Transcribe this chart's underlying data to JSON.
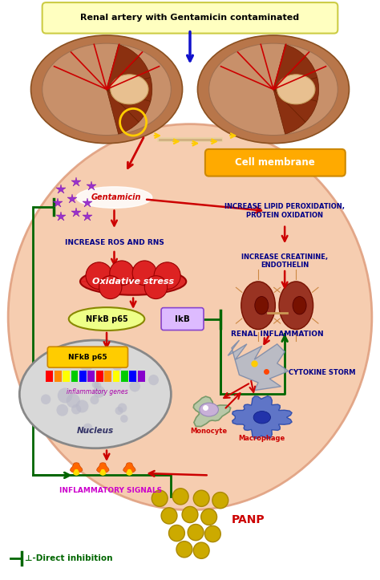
{
  "title": "Renal artery with Gentamicin contaminated",
  "title_bg": "#ffffc0",
  "cell_membrane_label": "Cell membrane",
  "cell_membrane_bg": "#ffaa00",
  "cell_fill": "#f5c8a8",
  "cell_edge": "#e0a080",
  "labels": {
    "gentamicin": "Gentamicin",
    "ros": "INCREASE ROS AND RNS",
    "lipid": "INCREASE LIPID PEROXIDATION,\nPROTEIN OXIDATION",
    "creatinine": "INCREASE CREATININE,\nENDOTHELIN",
    "oxidative": "Oxidative stress",
    "nfkb": "NFkB p65",
    "ikb": "IkB",
    "nfkb_nucleus": "NFkB p65",
    "inflammatory_genes": "inflammatory genes",
    "nucleus": "Nucleus",
    "inflammatory_signals": "INFLAMMATORY SIGNALS",
    "renal_inflammation": "RENAL INFLAMMATION",
    "cytokine_storm": "CYTOKINE STORM",
    "monocyte": "Monocyte",
    "macrophage": "Macrophage",
    "panp": "PANP",
    "direct_inhibition": "⊥-Direct inhibition"
  },
  "colors": {
    "red_arrow": "#cc0000",
    "blue_arrow": "#1111cc",
    "green_line": "#006600",
    "purple_particle": "#9933cc",
    "oxidative_fill": "#dd2222",
    "nfkb_fill": "#eeee44",
    "nucleus_fill": "#c0c0c0",
    "inflammatory_text": "#cc00cc",
    "panp_fill": "#ccaa00",
    "ros_text": "#000088",
    "background": "#ffffff"
  },
  "fig_width": 4.74,
  "fig_height": 7.23
}
